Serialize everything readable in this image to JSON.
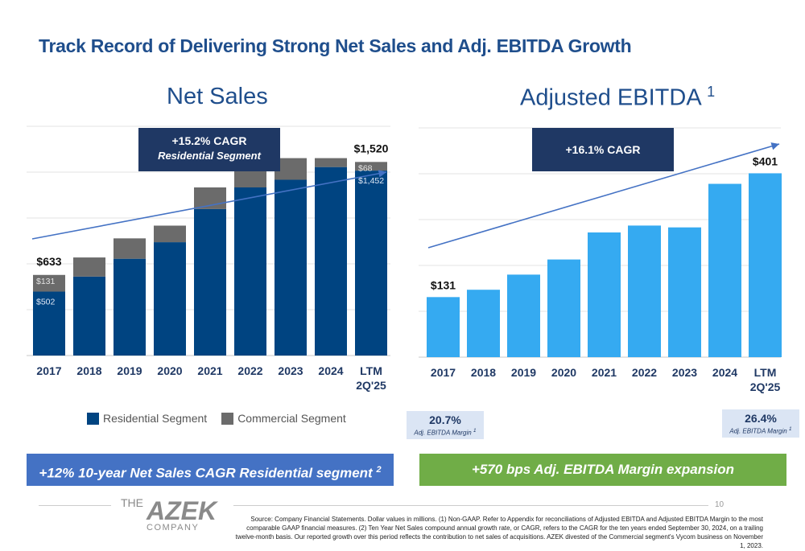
{
  "page": {
    "title": "Track Record of Delivering Strong Net Sales and Adj. EBITDA Growth",
    "page_number": "10",
    "footer": "Source: Company Financial Statements. Dollar values in millions. (1) Non-GAAP. Refer to Appendix for reconciliations of Adjusted EBITDA and Adjusted EBITDA Margin to the most comparable GAAP financial measures. (2) Ten Year Net Sales compound annual growth rate, or CAGR, refers to the CAGR for the ten years ended September 30, 2024, on a trailing twelve-month basis. Our reported growth over this period reflects the contribution to net sales of acquisitions. AZEK divested of the Commercial segment's Vycom business on November 1, 2023.",
    "logo": {
      "the": "THE",
      "name": "AZEK",
      "company": "COMPANY"
    }
  },
  "net_sales": {
    "subtitle": "Net Sales",
    "cagr_line1": "+15.2% CAGR",
    "cagr_line2": "Residential Segment",
    "legend_residential": "Residential Segment",
    "legend_commercial": "Commercial Segment",
    "banner": "+12% 10-year Net Sales CAGR Residential segment",
    "banner_sup": "2"
  },
  "ebitda": {
    "subtitle": "Adjusted EBITDA",
    "subtitle_sup": "1",
    "cagr": "+16.1% CAGR",
    "margin_start": {
      "value": "20.7%",
      "label": "Adj. EBITDA Margin",
      "sup": "1"
    },
    "margin_end": {
      "value": "26.4%",
      "label": "Adj. EBITDA Margin",
      "sup": "1"
    },
    "banner": "+570 bps Adj. EBITDA Margin expansion"
  },
  "colors": {
    "title": "#1f4e8c",
    "residential": "#004481",
    "commercial": "#6b6b6b",
    "ebitda": "#35aaf1",
    "callout": "#1f3864",
    "trend": "#4472c4",
    "banner_blue": "#4472c4",
    "banner_green": "#70ad47"
  },
  "chart_data": [
    {
      "type": "bar",
      "stacked": true,
      "categories": [
        "2017",
        "2018",
        "2019",
        "2020",
        "2021",
        "2022",
        "2023",
        "2024",
        "LTM 2Q'25"
      ],
      "series": [
        {
          "name": "Residential Segment",
          "values": [
            502,
            620,
            760,
            890,
            1150,
            1320,
            1380,
            1480,
            1452
          ]
        },
        {
          "name": "Commercial Segment",
          "values": [
            131,
            150,
            160,
            130,
            170,
            190,
            170,
            70,
            68
          ]
        }
      ],
      "total_labels": {
        "0": "$633",
        "8": "$1,520"
      },
      "segment_labels": [
        {
          "index": 0,
          "residential": "$502",
          "commercial": "$131"
        },
        {
          "index": 8,
          "residential": "$1,452",
          "commercial": "$68"
        }
      ],
      "ylim": [
        0,
        1800
      ],
      "grid": true,
      "legend": "bottom"
    },
    {
      "type": "bar",
      "categories": [
        "2017",
        "2018",
        "2019",
        "2020",
        "2021",
        "2022",
        "2023",
        "2024",
        "LTM 2Q'25"
      ],
      "series": [
        {
          "values": [
            131,
            147,
            180,
            213,
            272,
            287,
            283,
            378,
            401
          ]
        }
      ],
      "value_labels": {
        "0": "$131",
        "8": "$401"
      },
      "ylim": [
        0,
        500
      ],
      "grid": true
    }
  ]
}
